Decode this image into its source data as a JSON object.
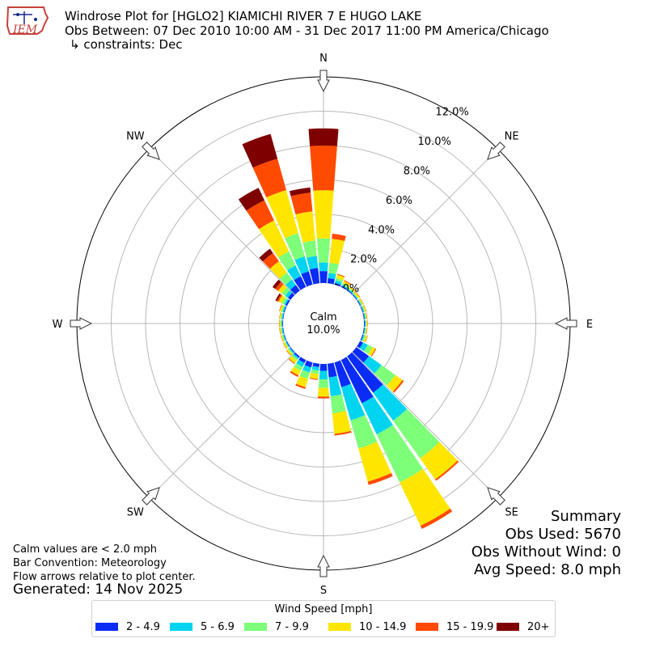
{
  "header": {
    "logo_text": "IEM",
    "title_line1": "Windrose Plot for [HGLO2] KIAMICHI RIVER 7 E HUGO LAKE",
    "title_line2": "Obs Between: 07 Dec 2010 10:00 AM - 31 Dec 2017 11:00 PM America/Chicago",
    "title_line3": "↳ constraints: Dec"
  },
  "chart_data": {
    "type": "windrose",
    "directions": [
      "N",
      "NE",
      "E",
      "SE",
      "S",
      "SW",
      "W",
      "NW"
    ],
    "sector_deg": 10,
    "speed_bins": [
      {
        "label": "2 - 4.9",
        "color": "#0a2cf5"
      },
      {
        "label": "5 - 6.9",
        "color": "#00d4f0"
      },
      {
        "label": "7 - 9.9",
        "color": "#7dff7a"
      },
      {
        "label": "10 - 14.9",
        "color": "#ffe600"
      },
      {
        "label": "15 - 19.9",
        "color": "#ff4a00"
      },
      {
        "label": "20+",
        "color": "#7f0000"
      }
    ],
    "radial_ticks": [
      0,
      2,
      4,
      6,
      8,
      10,
      12
    ],
    "radial_tick_labels": [
      "0.0%",
      "2.0%",
      "4.0%",
      "6.0%",
      "8.0%",
      "10.0%",
      "12.0%"
    ],
    "rmax": 12,
    "calm_label": "Calm",
    "calm_value": "10.0%",
    "legend_title": "Wind Speed [mph]",
    "cumulative_by_direction_deg": {
      "0": [
        0.7,
        1.2,
        2.6,
        5.4,
        8.0,
        9.0
      ],
      "10": [
        0.3,
        0.6,
        1.2,
        2.6,
        2.9,
        2.9
      ],
      "20": [
        0.1,
        0.25,
        0.4,
        0.6,
        0.65,
        0.65
      ],
      "30": [
        0.08,
        0.15,
        0.25,
        0.4,
        0.45,
        0.45
      ],
      "40": [
        0.06,
        0.12,
        0.2,
        0.3,
        0.32,
        0.32
      ],
      "50": [
        0.05,
        0.1,
        0.15,
        0.25,
        0.28,
        0.28
      ],
      "60": [
        0.05,
        0.1,
        0.15,
        0.22,
        0.24,
        0.24
      ],
      "70": [
        0.05,
        0.1,
        0.15,
        0.22,
        0.24,
        0.24
      ],
      "80": [
        0.05,
        0.1,
        0.14,
        0.2,
        0.22,
        0.22
      ],
      "90": [
        0.05,
        0.1,
        0.14,
        0.2,
        0.22,
        0.22
      ],
      "100": [
        0.05,
        0.1,
        0.14,
        0.2,
        0.22,
        0.22
      ],
      "110": [
        0.06,
        0.12,
        0.2,
        0.3,
        0.32,
        0.32
      ],
      "120": [
        0.2,
        0.5,
        0.8,
        1.0,
        1.05,
        1.05
      ],
      "130": [
        0.9,
        1.8,
        2.8,
        3.3,
        3.4,
        3.4
      ],
      "140": [
        2.6,
        4.6,
        7.3,
        8.8,
        8.9,
        8.9
      ],
      "150": [
        2.8,
        4.8,
        7.9,
        10.7,
        10.9,
        10.9
      ],
      "160": [
        1.5,
        3.5,
        5.2,
        7.2,
        7.4,
        7.4
      ],
      "170": [
        0.8,
        1.9,
        2.9,
        4.1,
        4.2,
        4.2
      ],
      "180": [
        0.4,
        0.9,
        1.4,
        1.9,
        2.0,
        2.0
      ],
      "190": [
        0.2,
        0.4,
        0.6,
        0.9,
        0.95,
        0.95
      ],
      "200": [
        0.3,
        0.6,
        1.0,
        1.5,
        1.6,
        1.6
      ],
      "210": [
        0.2,
        0.45,
        0.7,
        1.0,
        1.1,
        1.1
      ],
      "220": [
        0.1,
        0.2,
        0.3,
        0.5,
        0.55,
        0.55
      ],
      "230": [
        0.05,
        0.12,
        0.2,
        0.3,
        0.33,
        0.33
      ],
      "240": [
        0.05,
        0.1,
        0.15,
        0.25,
        0.27,
        0.27
      ],
      "250": [
        0.04,
        0.1,
        0.15,
        0.22,
        0.24,
        0.24
      ],
      "260": [
        0.04,
        0.1,
        0.15,
        0.22,
        0.24,
        0.24
      ],
      "270": [
        0.04,
        0.1,
        0.15,
        0.22,
        0.24,
        0.24
      ],
      "280": [
        0.04,
        0.1,
        0.15,
        0.22,
        0.24,
        0.24
      ],
      "290": [
        0.05,
        0.12,
        0.2,
        0.3,
        0.33,
        0.33
      ],
      "300": [
        0.1,
        0.2,
        0.35,
        0.55,
        0.65,
        0.75
      ],
      "310": [
        0.2,
        0.4,
        0.65,
        0.9,
        1.1,
        1.3
      ],
      "320": [
        0.4,
        0.8,
        1.3,
        2.1,
        2.7,
        3.0
      ],
      "330": [
        0.7,
        1.4,
        2.3,
        4.3,
        5.6,
        6.4
      ],
      "340": [
        0.8,
        1.7,
        3.1,
        5.7,
        7.6,
        9.1
      ],
      "350": [
        0.9,
        1.6,
        2.5,
        4.2,
        5.3,
        5.6
      ]
    }
  },
  "notes": {
    "line1": "Calm values are < 2.0 mph",
    "line2": "Bar Convention: Meteorology",
    "line3": "Flow arrows relative to plot center."
  },
  "generated": "Generated: 14 Nov 2025",
  "summary": {
    "title": "Summary",
    "obs_used": "Obs Used: 5670",
    "obs_without_wind": "Obs Without Wind: 0",
    "avg_speed": "Avg Speed: 8.0 mph"
  }
}
